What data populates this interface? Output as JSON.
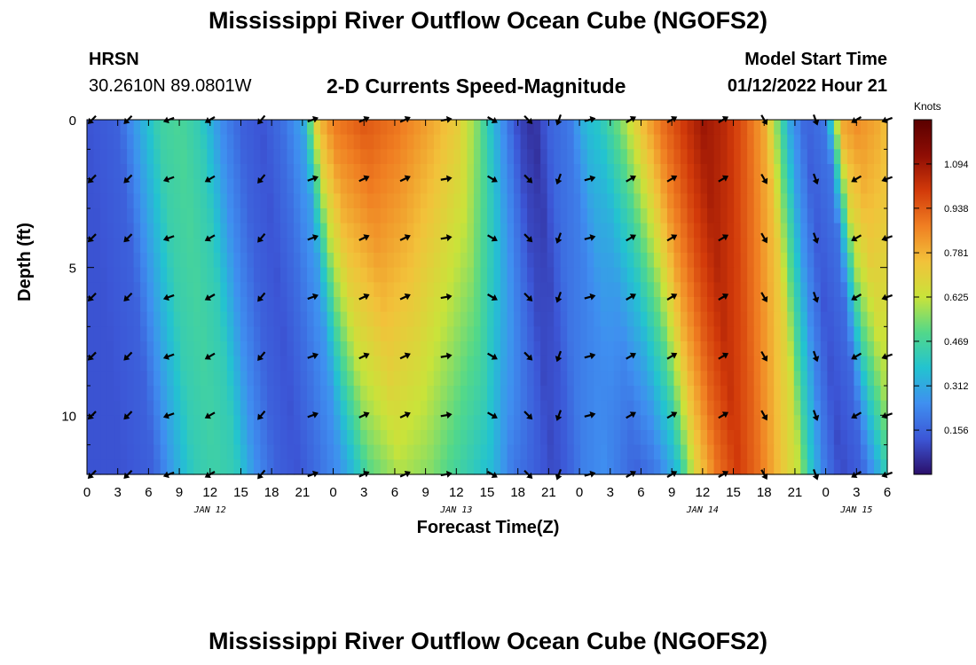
{
  "page": {
    "title_top": "Mississippi River Outflow Ocean Cube (NGOFS2)",
    "title_bottom": "Mississippi River Outflow Ocean Cube (NGOFS2)",
    "station_name": "HRSN",
    "station_coords": "30.2610N  89.0801W",
    "model_start_label": "Model Start Time",
    "model_start_value": "01/12/2022 Hour 21"
  },
  "colors": {
    "scale": [
      "#2b0f6a",
      "#3c56d6",
      "#3f8ff0",
      "#23c3d0",
      "#52d88a",
      "#c9e33a",
      "#f2c23a",
      "#f07f22",
      "#d23a0a",
      "#8e0d04",
      "#5a0000"
    ]
  },
  "chart_data": {
    "type": "heatmap",
    "title": "2-D Currents Speed-Magnitude",
    "xlabel": "Forecast Time(Z)",
    "ylabel": "Depth (ft)",
    "x_hours": [
      0,
      3,
      6,
      9,
      12,
      15,
      18,
      21,
      24,
      27,
      30,
      33,
      36,
      39,
      42,
      45,
      48,
      51,
      54,
      57,
      60,
      63,
      66,
      69,
      72,
      75,
      78
    ],
    "x_tick_labels": [
      "0",
      "3",
      "6",
      "9",
      "12",
      "15",
      "18",
      "21",
      "0",
      "3",
      "6",
      "9",
      "12",
      "15",
      "18",
      "21",
      "0",
      "3",
      "6",
      "9",
      "12",
      "15",
      "18",
      "21",
      "0",
      "3",
      "6"
    ],
    "date_labels": [
      {
        "text": "JAN 12",
        "hour": 12
      },
      {
        "text": "JAN 13",
        "hour": 36
      },
      {
        "text": "JAN 14",
        "hour": 60
      },
      {
        "text": "JAN 15",
        "hour": 75
      }
    ],
    "xlim": [
      0,
      78
    ],
    "ylim": [
      0,
      12
    ],
    "y_ticks": [
      0,
      5,
      10
    ],
    "colorbar": {
      "unit": "Knots",
      "min": 0,
      "max": 1.25,
      "ticks": [
        0.156,
        0.312,
        0.469,
        0.625,
        0.781,
        0.938,
        1.094
      ],
      "tick_labels": [
        "0.156",
        "0.312",
        "0.469",
        "0.625",
        "0.781",
        "0.938",
        "1.094"
      ]
    },
    "speed_profile": {
      "hours": [
        0,
        3,
        5,
        7,
        9,
        11,
        13,
        15,
        17,
        19,
        21,
        22.5,
        24,
        27,
        30,
        33,
        36,
        38,
        40,
        42,
        43.5,
        45,
        47,
        48.5,
        50,
        52,
        54,
        56,
        58,
        60,
        62,
        64,
        66,
        67,
        68.5,
        70,
        72,
        73.5,
        75,
        77,
        78
      ],
      "top": [
        0.12,
        0.15,
        0.3,
        0.45,
        0.48,
        0.42,
        0.25,
        0.15,
        0.12,
        0.18,
        0.3,
        0.75,
        0.88,
        0.95,
        0.9,
        0.82,
        0.72,
        0.55,
        0.3,
        0.1,
        0.05,
        0.15,
        0.2,
        0.35,
        0.4,
        0.55,
        0.75,
        0.9,
        1.0,
        1.1,
        1.05,
        0.95,
        0.8,
        0.6,
        0.3,
        0.15,
        0.2,
        0.8,
        0.85,
        0.8,
        0.75
      ],
      "bottom": [
        0.12,
        0.15,
        0.3,
        0.42,
        0.45,
        0.42,
        0.25,
        0.15,
        0.12,
        0.18,
        0.25,
        0.35,
        0.5,
        0.6,
        0.55,
        0.45,
        0.35,
        0.2,
        0.15,
        0.1,
        0.15,
        0.22,
        0.25,
        0.2,
        0.15,
        0.2,
        0.35,
        0.7,
        0.9,
        1.0,
        0.9,
        0.75,
        0.6,
        0.4,
        0.2,
        0.1,
        0.15,
        0.3,
        0.5,
        0.5,
        0.45
      ]
    },
    "arrow_depths": [
      0,
      2,
      4,
      6,
      8,
      10,
      12
    ],
    "arrow_columns": [
      {
        "hour": 0.5,
        "angle": 225
      },
      {
        "hour": 4,
        "angle": 225
      },
      {
        "hour": 8,
        "angle": 200
      },
      {
        "hour": 12,
        "angle": 210
      },
      {
        "hour": 17,
        "angle": 230
      },
      {
        "hour": 22,
        "angle": 20
      },
      {
        "hour": 27,
        "angle": 25
      },
      {
        "hour": 31,
        "angle": 25
      },
      {
        "hour": 35,
        "angle": 10
      },
      {
        "hour": 39.5,
        "angle": 330
      },
      {
        "hour": 43,
        "angle": 315
      },
      {
        "hour": 46,
        "angle": 250
      },
      {
        "hour": 49,
        "angle": 15
      },
      {
        "hour": 53,
        "angle": 30
      },
      {
        "hour": 57,
        "angle": 30
      },
      {
        "hour": 62,
        "angle": 30
      },
      {
        "hour": 66,
        "angle": 300
      },
      {
        "hour": 71,
        "angle": 290
      },
      {
        "hour": 75,
        "angle": 210
      },
      {
        "hour": 78,
        "angle": 200
      }
    ]
  }
}
